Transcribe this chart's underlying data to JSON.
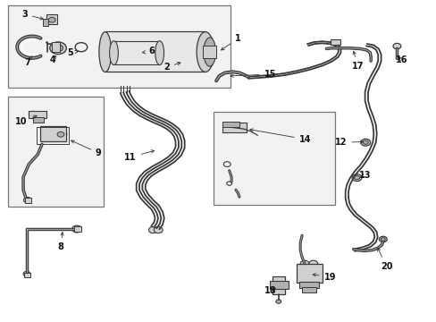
{
  "bg_color": "#ffffff",
  "fig_width": 4.89,
  "fig_height": 3.6,
  "dpi": 100,
  "lc": "#3a3a3a",
  "lc_thin": "#555555",
  "fc_light": "#e8e8e8",
  "fc_med": "#d0d0d0",
  "fc_dark": "#b0b0b0",
  "box_fc": "#efefef",
  "box_ec": "#888888",
  "label_fs": 7,
  "labels": {
    "1": [
      0.51,
      0.88,
      0.54,
      0.88
    ],
    "2": [
      0.39,
      0.8,
      0.38,
      0.79
    ],
    "3": [
      0.06,
      0.96,
      0.075,
      0.96
    ],
    "4": [
      0.12,
      0.815,
      0.12,
      0.825
    ],
    "5": [
      0.165,
      0.84,
      0.168,
      0.848
    ],
    "6": [
      0.335,
      0.84,
      0.34,
      0.845
    ],
    "7": [
      0.06,
      0.805,
      0.065,
      0.815
    ],
    "8": [
      0.135,
      0.23,
      0.14,
      0.24
    ],
    "9": [
      0.215,
      0.525,
      0.215,
      0.53
    ],
    "10": [
      0.06,
      0.62,
      0.075,
      0.625
    ],
    "11": [
      0.31,
      0.51,
      0.315,
      0.51
    ],
    "12": [
      0.79,
      0.56,
      0.795,
      0.555
    ],
    "13": [
      0.82,
      0.455,
      0.82,
      0.455
    ],
    "14": [
      0.68,
      0.57,
      0.685,
      0.565
    ],
    "15": [
      0.605,
      0.775,
      0.61,
      0.772
    ],
    "16": [
      0.905,
      0.818,
      0.905,
      0.812
    ],
    "17": [
      0.82,
      0.8,
      0.82,
      0.795
    ],
    "18": [
      0.63,
      0.095,
      0.635,
      0.1
    ],
    "19": [
      0.74,
      0.14,
      0.745,
      0.14
    ],
    "20": [
      0.87,
      0.175,
      0.875,
      0.172
    ]
  }
}
